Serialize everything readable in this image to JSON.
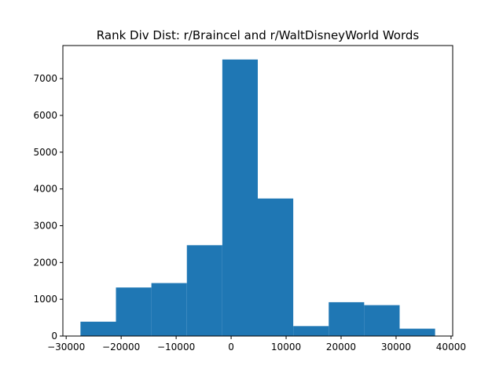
{
  "chart_data": {
    "type": "bar",
    "title": "Rank Div Dist: r/Braincel and r/WaltDisneyWorld Words",
    "xlabel": "",
    "ylabel": "",
    "bin_edges": [
      -27400,
      -20950,
      -14500,
      -8050,
      -1600,
      4850,
      11300,
      17750,
      24200,
      30650,
      37100
    ],
    "values": [
      390,
      1320,
      1440,
      2470,
      7520,
      3740,
      270,
      920,
      840,
      200
    ],
    "xlim": [
      -30600,
      40300
    ],
    "ylim": [
      0,
      7900
    ],
    "xticks": [
      -30000,
      -20000,
      -10000,
      0,
      10000,
      20000,
      30000,
      40000
    ],
    "yticks": [
      0,
      1000,
      2000,
      3000,
      4000,
      5000,
      6000,
      7000
    ],
    "grid": false,
    "colors": {
      "bar": "#1f77b4",
      "axes": "#000000",
      "background": "#ffffff"
    }
  }
}
